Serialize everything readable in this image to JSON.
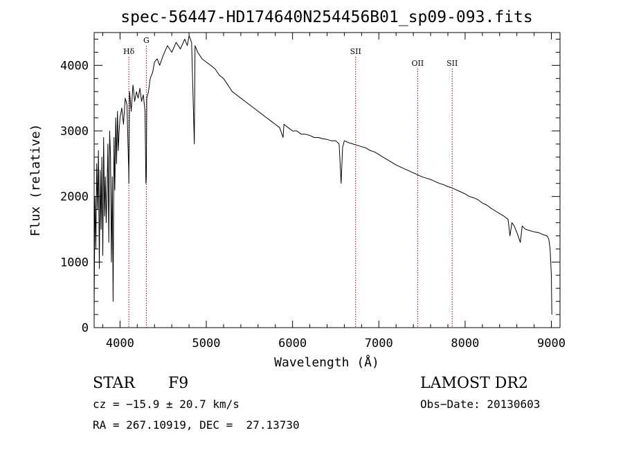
{
  "chart_data": {
    "type": "line",
    "title": "spec-56447-HD174640N254456B01_sp09-093.fits",
    "xlabel": "Wavelength (Å)",
    "ylabel": "Flux (relative)",
    "xlim": [
      3700,
      9100
    ],
    "ylim": [
      0,
      4500
    ],
    "x_ticks": [
      4000,
      5000,
      6000,
      7000,
      8000,
      9000
    ],
    "y_ticks": [
      0,
      1000,
      2000,
      3000,
      4000
    ],
    "x_tick_labels": [
      "4000",
      "5000",
      "6000",
      "7000",
      "8000",
      "9000"
    ],
    "y_tick_labels": [
      "0",
      "1000",
      "2000",
      "3000",
      "4000"
    ],
    "grid": false,
    "line_color": "#000000",
    "marker_color": "#8b0000",
    "spectral_lines": [
      {
        "label": "Hδ",
        "wavelength": 4102
      },
      {
        "label": "G",
        "wavelength": 4305
      },
      {
        "label": "SII",
        "wavelength": 6731
      },
      {
        "label": "OII",
        "wavelength": 7450
      },
      {
        "label": "SII",
        "wavelength": 7850
      }
    ],
    "series": [
      {
        "x": [
          3700,
          3710,
          3720,
          3730,
          3740,
          3750,
          3760,
          3770,
          3780,
          3790,
          3800,
          3810,
          3820,
          3830,
          3840,
          3850,
          3860,
          3870,
          3880,
          3890,
          3900,
          3910,
          3920,
          3930,
          3940,
          3950,
          3960,
          3970,
          3980,
          3990,
          4000,
          4020,
          4040,
          4060,
          4080,
          4100,
          4102,
          4110,
          4130,
          4150,
          4170,
          4190,
          4210,
          4230,
          4250,
          4270,
          4290,
          4300,
          4305,
          4310,
          4330,
          4350,
          4380,
          4400,
          4430,
          4460,
          4500,
          4550,
          4600,
          4650,
          4700,
          4750,
          4780,
          4800,
          4830,
          4861,
          4870,
          4900,
          4950,
          5000,
          5050,
          5100,
          5150,
          5200,
          5250,
          5300,
          5350,
          5400,
          5450,
          5500,
          5550,
          5600,
          5650,
          5700,
          5750,
          5800,
          5850,
          5890,
          5900,
          5950,
          6000,
          6050,
          6100,
          6150,
          6200,
          6250,
          6300,
          6350,
          6400,
          6450,
          6500,
          6540,
          6563,
          6580,
          6600,
          6650,
          6700,
          6750,
          6800,
          6850,
          6900,
          6950,
          7000,
          7050,
          7100,
          7150,
          7200,
          7250,
          7300,
          7350,
          7400,
          7450,
          7500,
          7550,
          7600,
          7650,
          7700,
          7750,
          7800,
          7850,
          7900,
          7950,
          8000,
          8050,
          8100,
          8150,
          8200,
          8250,
          8300,
          8350,
          8400,
          8450,
          8498,
          8520,
          8542,
          8570,
          8600,
          8640,
          8662,
          8700,
          8750,
          8800,
          8850,
          8900,
          8950,
          8970,
          8985,
          9000,
          9005
        ],
        "y": [
          300,
          2000,
          1200,
          2500,
          1800,
          2700,
          900,
          2400,
          1500,
          2600,
          1100,
          2900,
          1700,
          2300,
          1600,
          2100,
          2800,
          1300,
          3000,
          2600,
          1000,
          2300,
          400,
          2900,
          2100,
          3200,
          2500,
          3300,
          2700,
          3000,
          3200,
          3350,
          3100,
          3500,
          3400,
          2400,
          2200,
          3600,
          3300,
          3700,
          3450,
          3600,
          3500,
          3650,
          3450,
          3550,
          3300,
          2200,
          2300,
          3500,
          3600,
          3800,
          3900,
          4050,
          4100,
          4000,
          4150,
          4300,
          4200,
          4350,
          4250,
          4400,
          4300,
          4450,
          4350,
          2800,
          4300,
          4200,
          4100,
          4050,
          4000,
          3950,
          3850,
          3800,
          3700,
          3600,
          3550,
          3500,
          3450,
          3400,
          3350,
          3300,
          3250,
          3200,
          3150,
          3100,
          3050,
          2900,
          3100,
          3050,
          3000,
          3000,
          2950,
          2950,
          2930,
          2900,
          2900,
          2880,
          2870,
          2850,
          2850,
          2800,
          2200,
          2750,
          2850,
          2820,
          2800,
          2780,
          2760,
          2740,
          2700,
          2680,
          2640,
          2600,
          2560,
          2520,
          2480,
          2450,
          2420,
          2390,
          2360,
          2330,
          2300,
          2280,
          2260,
          2230,
          2200,
          2180,
          2150,
          2130,
          2100,
          2070,
          2040,
          2000,
          1980,
          1950,
          1900,
          1870,
          1820,
          1780,
          1740,
          1700,
          1650,
          1400,
          1600,
          1550,
          1450,
          1300,
          1550,
          1500,
          1480,
          1460,
          1450,
          1420,
          1400,
          1350,
          1200,
          800,
          200
        ]
      }
    ]
  },
  "footer": {
    "object_class": "STAR",
    "subclass": "F9",
    "survey": "LAMOST DR2",
    "redshift": "cz = −15.9 ± 20.7 km/s",
    "obs_date": "Obs−Date: 20130603",
    "coords": "RA = 267.10919, DEC =  27.13730"
  }
}
